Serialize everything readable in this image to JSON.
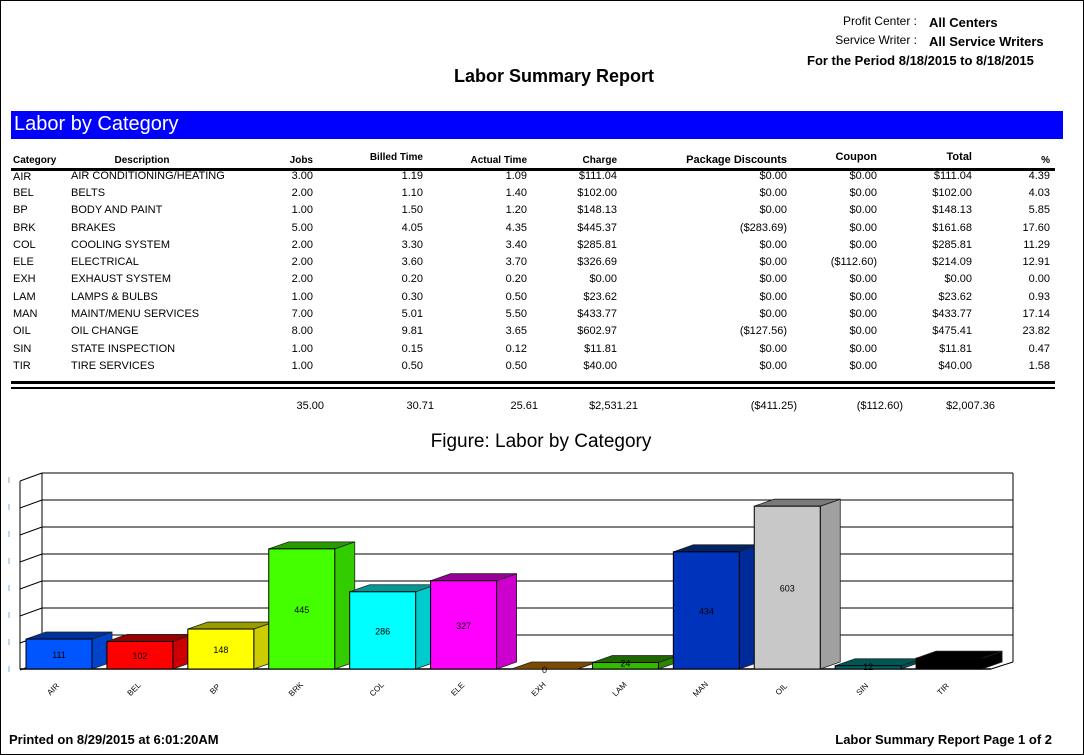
{
  "header": {
    "profit_center_label": "Profit Center :",
    "profit_center_value": "All Centers",
    "service_writer_label": "Service Writer :",
    "service_writer_value": "All Service Writers",
    "period": "For the Period 8/18/2015 to 8/18/2015",
    "title": "Labor Summary Report"
  },
  "section": {
    "title": "Labor by Category",
    "accent_color": "#0000ff"
  },
  "table": {
    "columns": [
      "Category",
      "Description",
      "Jobs",
      "Billed Time",
      "Actual Time",
      "Charge",
      "Package Discounts",
      "Coupon",
      "Total",
      "%"
    ],
    "rows": [
      [
        "AIR",
        "AIR CONDITIONING/HEATING",
        "3.00",
        "1.19",
        "1.09",
        "$111.04",
        "$0.00",
        "$0.00",
        "$111.04",
        "4.39"
      ],
      [
        "BEL",
        "BELTS",
        "2.00",
        "1.10",
        "1.40",
        "$102.00",
        "$0.00",
        "$0.00",
        "$102.00",
        "4.03"
      ],
      [
        "BP",
        "BODY AND PAINT",
        "1.00",
        "1.50",
        "1.20",
        "$148.13",
        "$0.00",
        "$0.00",
        "$148.13",
        "5.85"
      ],
      [
        "BRK",
        "BRAKES",
        "5.00",
        "4.05",
        "4.35",
        "$445.37",
        "($283.69)",
        "$0.00",
        "$161.68",
        "17.60"
      ],
      [
        "COL",
        "COOLING SYSTEM",
        "2.00",
        "3.30",
        "3.40",
        "$285.81",
        "$0.00",
        "$0.00",
        "$285.81",
        "11.29"
      ],
      [
        "ELE",
        "ELECTRICAL",
        "2.00",
        "3.60",
        "3.70",
        "$326.69",
        "$0.00",
        "($112.60)",
        "$214.09",
        "12.91"
      ],
      [
        "EXH",
        "EXHAUST SYSTEM",
        "2.00",
        "0.20",
        "0.20",
        "$0.00",
        "$0.00",
        "$0.00",
        "$0.00",
        "0.00"
      ],
      [
        "LAM",
        "LAMPS & BULBS",
        "1.00",
        "0.30",
        "0.50",
        "$23.62",
        "$0.00",
        "$0.00",
        "$23.62",
        "0.93"
      ],
      [
        "MAN",
        "MAINT/MENU SERVICES",
        "7.00",
        "5.01",
        "5.50",
        "$433.77",
        "$0.00",
        "$0.00",
        "$433.77",
        "17.14"
      ],
      [
        "OIL",
        "OIL CHANGE",
        "8.00",
        "9.81",
        "3.65",
        "$602.97",
        "($127.56)",
        "$0.00",
        "$475.41",
        "23.82"
      ],
      [
        "SIN",
        "STATE INSPECTION",
        "1.00",
        "0.15",
        "0.12",
        "$11.81",
        "$0.00",
        "$0.00",
        "$11.81",
        "0.47"
      ],
      [
        "TIR",
        "TIRE SERVICES",
        "1.00",
        "0.50",
        "0.50",
        "$40.00",
        "$0.00",
        "$0.00",
        "$40.00",
        "1.58"
      ]
    ],
    "totals": {
      "jobs": "35.00",
      "billed_time": "30.71",
      "actual_time": "25.61",
      "charge": "$2,531.21",
      "package_discounts": "($411.25)",
      "coupon": "($112.60)",
      "total": "$2,007.36"
    }
  },
  "figure": {
    "title": "Figure: Labor by Category"
  },
  "chart_data": {
    "type": "bar",
    "title": "Figure: Labor by Category",
    "xlabel": "",
    "ylabel": "",
    "categories": [
      "AIR",
      "BEL",
      "BP",
      "BRK",
      "COL",
      "ELE",
      "EXH",
      "LAM",
      "MAN",
      "OIL",
      "SIN",
      "TIR"
    ],
    "values": [
      111,
      102,
      148,
      445,
      286,
      327,
      0,
      24,
      434,
      603,
      12,
      40
    ],
    "value_labels": [
      "111",
      "102",
      "148",
      "445",
      "286",
      "327",
      "0",
      "24",
      "434",
      "603",
      "12",
      ""
    ],
    "colors": [
      "#0055ff",
      "#ff0000",
      "#ffff00",
      "#44ff00",
      "#00ffff",
      "#ff00ff",
      "#7a4a00",
      "#33bb00",
      "#0033bb",
      "#c8c8c8",
      "#006666",
      "#000000"
    ],
    "side_colors": [
      "#0044cc",
      "#cc0000",
      "#cccc00",
      "#33cc00",
      "#00cccc",
      "#cc00cc",
      "#5a3500",
      "#2a8800",
      "#002a99",
      "#a0a0a0",
      "#005050",
      "#000000"
    ],
    "top_colors": [
      "#003399",
      "#990000",
      "#999900",
      "#2a9900",
      "#009999",
      "#990099",
      "#7a4a00",
      "#1f6600",
      "#002266",
      "#7a7a7a",
      "#005555",
      "#000000"
    ],
    "ylim": [
      0,
      700
    ],
    "gridlines": 7,
    "grid": true,
    "legend": "none",
    "three_d": true
  },
  "footer": {
    "printed": "Printed on 8/29/2015 at  6:01:20AM",
    "page": "Labor Summary Report  Page 1 of 2"
  }
}
